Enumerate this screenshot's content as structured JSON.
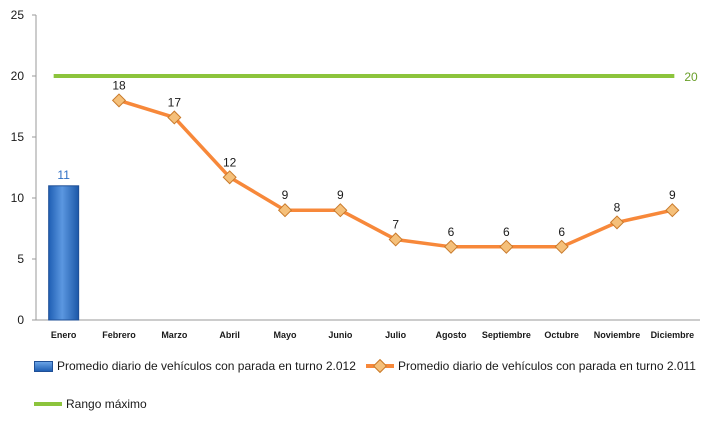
{
  "chart_data": {
    "type": "bar",
    "categories": [
      "Enero",
      "Febrero",
      "Marzo",
      "Abril",
      "Mayo",
      "Junio",
      "Julio",
      "Agosto",
      "Septiembre",
      "Octubre",
      "Noviembre",
      "Diciembre"
    ],
    "ylim": [
      0,
      25
    ],
    "yticks": [
      0,
      5,
      10,
      15,
      20,
      25
    ],
    "grid": false,
    "legend_position": "bottom",
    "series": [
      {
        "name": "Promedio diario de vehículos con parada en turno 2.012",
        "type": "bar",
        "color": "#2e6fc4",
        "values": [
          11,
          null,
          null,
          null,
          null,
          null,
          null,
          null,
          null,
          null,
          null,
          null
        ],
        "labels": [
          "11",
          "",
          "",
          "",
          "",
          "",
          "",
          "",
          "",
          "",
          "",
          ""
        ]
      },
      {
        "name": "Promedio diario de vehículos con parada en turno 2.011",
        "type": "line",
        "color": "#f7883a",
        "values": [
          null,
          18,
          16.6,
          11.7,
          9,
          9,
          6.6,
          6,
          6,
          6,
          8,
          9
        ],
        "labels": [
          "",
          "18",
          "17",
          "12",
          "9",
          "9",
          "7",
          "6",
          "6",
          "6",
          "8",
          "9"
        ]
      },
      {
        "name": "Rango máximo",
        "type": "line",
        "color": "#8cc43c",
        "values": [
          20,
          20,
          20,
          20,
          20,
          20,
          20,
          20,
          20,
          20,
          20,
          20
        ],
        "labels": [
          "",
          "",
          "",
          "",
          "",
          "",
          "",
          "",
          "",
          "",
          "",
          "20"
        ]
      }
    ]
  }
}
